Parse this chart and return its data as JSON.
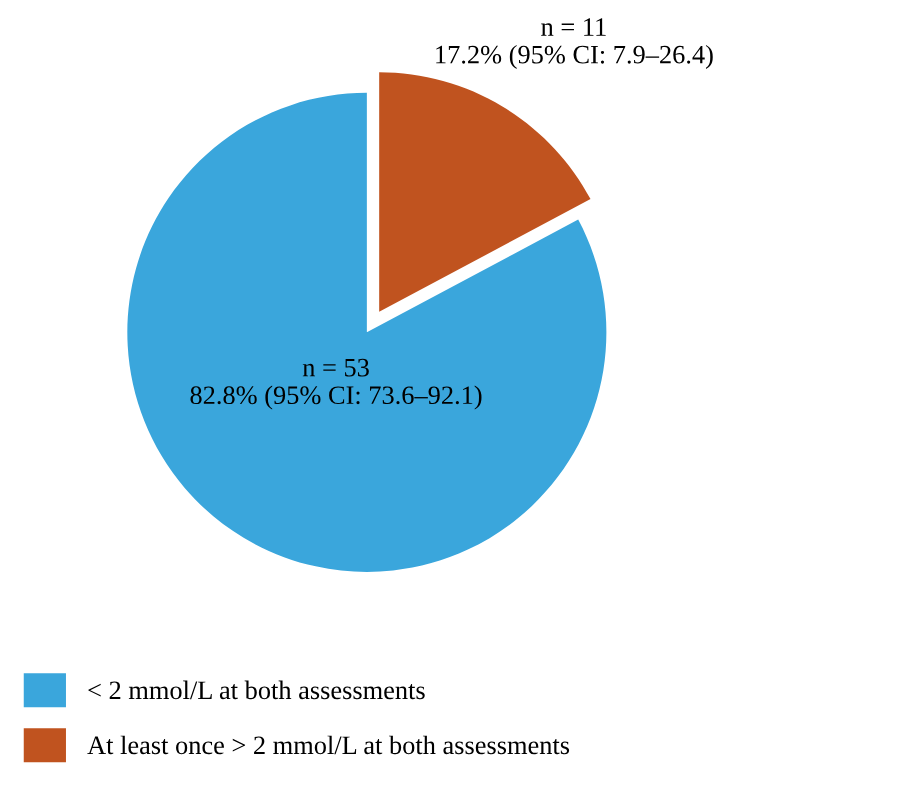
{
  "chart_data": {
    "type": "pie",
    "categories": [
      "< 2 mmol/L at both assessments",
      "At least once > 2 mmol/L at both assessments"
    ],
    "values": [
      82.8,
      17.2
    ],
    "colors": [
      "#3aa6dc",
      "#c0531f"
    ],
    "value_labels": [
      "n = 53\n82.8% (95% CI: 73.6–92.1)",
      "n = 11\n17.2% (95% CI: 7.9–26.4)"
    ],
    "legend": "bottom left"
  }
}
